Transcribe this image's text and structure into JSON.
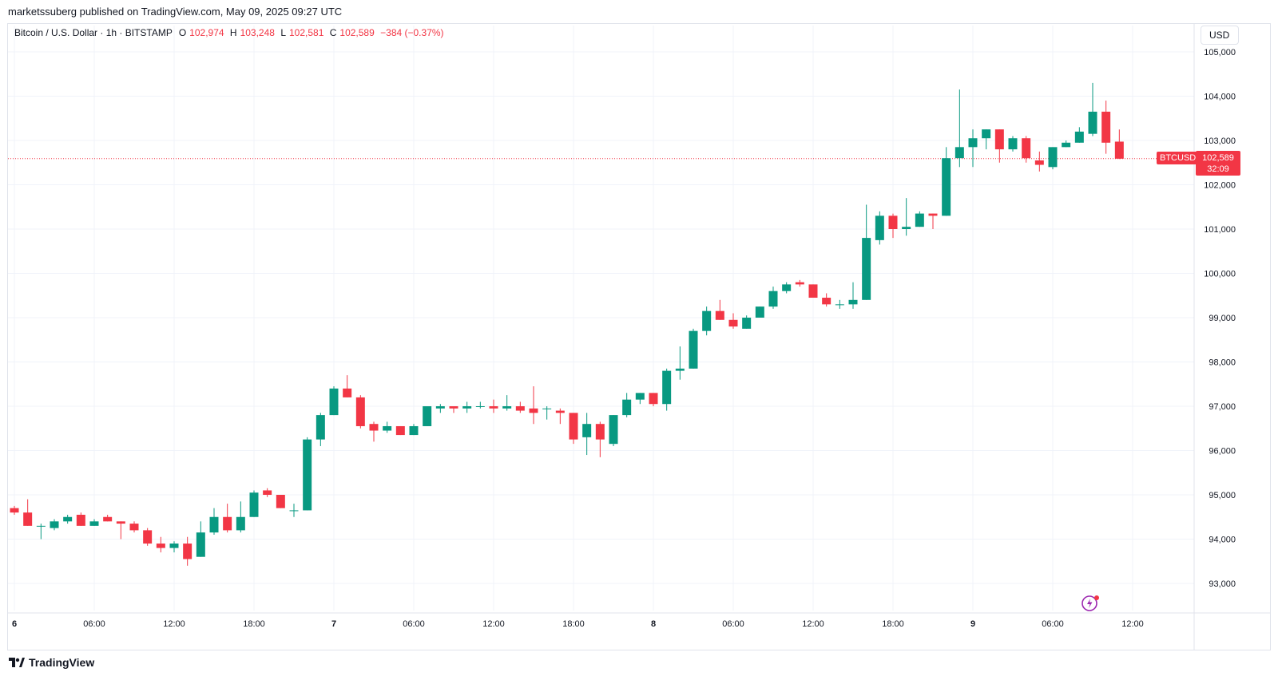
{
  "header": {
    "published": "marketssuberg published on TradingView.com, May 09, 2025 09:27 UTC"
  },
  "legend": {
    "symbol": "Bitcoin / U.S. Dollar · 1h · BITSTAMP",
    "o_label": "O",
    "o_value": "102,974",
    "h_label": "H",
    "h_value": "103,248",
    "l_label": "L",
    "l_value": "102,581",
    "c_label": "C",
    "c_value": "102,589",
    "change": "−384 (−0.37%)"
  },
  "currency_button": "USD",
  "price_tag": {
    "symbol": "BTCUSD",
    "price": "102,589",
    "countdown": "32:09"
  },
  "brand": "TradingView",
  "colors": {
    "up": "#089981",
    "down": "#f23645",
    "grid": "#f0f3fa",
    "text": "#131722"
  },
  "chart_data": {
    "type": "candlestick",
    "title": "Bitcoin / U.S. Dollar · 1h · BITSTAMP",
    "xlabel": "",
    "ylabel": "",
    "ylim": [
      92500,
      105000
    ],
    "y_ticks": [
      93000,
      94000,
      95000,
      96000,
      97000,
      98000,
      99000,
      100000,
      101000,
      102000,
      103000,
      104000,
      105000
    ],
    "y_tick_labels": [
      "93,000",
      "94,000",
      "95,000",
      "96,000",
      "97,000",
      "98,000",
      "99,000",
      "100,000",
      "101,000",
      "102,000",
      "103,000",
      "104,000",
      "105,000"
    ],
    "x_tick_labels": [
      {
        "label": "6",
        "hour": 0,
        "bold": true
      },
      {
        "label": "06:00",
        "hour": 6
      },
      {
        "label": "12:00",
        "hour": 12
      },
      {
        "label": "18:00",
        "hour": 18
      },
      {
        "label": "7",
        "hour": 24,
        "bold": true
      },
      {
        "label": "06:00",
        "hour": 30
      },
      {
        "label": "12:00",
        "hour": 36
      },
      {
        "label": "18:00",
        "hour": 42
      },
      {
        "label": "8",
        "hour": 48,
        "bold": true
      },
      {
        "label": "06:00",
        "hour": 54
      },
      {
        "label": "12:00",
        "hour": 60
      },
      {
        "label": "18:00",
        "hour": 66
      },
      {
        "label": "9",
        "hour": 72,
        "bold": true
      },
      {
        "label": "06:00",
        "hour": 78
      },
      {
        "label": "12:00",
        "hour": 84
      }
    ],
    "last_price": 102589,
    "candles": [
      [
        94700,
        94750,
        94550,
        94600
      ],
      [
        94600,
        94900,
        94300,
        94300
      ],
      [
        94300,
        94350,
        94000,
        94300
      ],
      [
        94250,
        94450,
        94200,
        94400
      ],
      [
        94400,
        94550,
        94350,
        94500
      ],
      [
        94550,
        94600,
        94300,
        94300
      ],
      [
        94300,
        94450,
        94300,
        94400
      ],
      [
        94500,
        94550,
        94400,
        94400
      ],
      [
        94400,
        94400,
        94000,
        94350
      ],
      [
        94350,
        94400,
        94150,
        94200
      ],
      [
        94200,
        94250,
        93850,
        93900
      ],
      [
        93900,
        94050,
        93700,
        93800
      ],
      [
        93800,
        93950,
        93700,
        93900
      ],
      [
        93900,
        94050,
        93400,
        93550
      ],
      [
        93600,
        94400,
        93600,
        94150
      ],
      [
        94150,
        94700,
        94100,
        94500
      ],
      [
        94500,
        94800,
        94150,
        94200
      ],
      [
        94200,
        94850,
        94150,
        94500
      ],
      [
        94500,
        95100,
        94500,
        95050
      ],
      [
        95100,
        95150,
        94950,
        95000
      ],
      [
        95000,
        95000,
        94700,
        94700
      ],
      [
        94650,
        94800,
        94500,
        94650
      ],
      [
        94650,
        96300,
        94650,
        96250
      ],
      [
        96250,
        96850,
        96100,
        96800
      ],
      [
        96800,
        97450,
        96800,
        97400
      ],
      [
        97400,
        97700,
        97200,
        97200
      ],
      [
        97200,
        97250,
        96500,
        96550
      ],
      [
        96600,
        96650,
        96200,
        96450
      ],
      [
        96450,
        96650,
        96400,
        96550
      ],
      [
        96550,
        96550,
        96350,
        96350
      ],
      [
        96350,
        96600,
        96350,
        96550
      ],
      [
        96550,
        97000,
        96550,
        97000
      ],
      [
        96950,
        97050,
        96850,
        97000
      ],
      [
        97000,
        97000,
        96850,
        96950
      ],
      [
        96950,
        97100,
        96850,
        97000
      ],
      [
        97000,
        97100,
        96950,
        97000
      ],
      [
        97000,
        97150,
        96850,
        96950
      ],
      [
        96950,
        97250,
        96900,
        97000
      ],
      [
        97000,
        97100,
        96850,
        96900
      ],
      [
        96950,
        97450,
        96600,
        96850
      ],
      [
        96950,
        97000,
        96700,
        96950
      ],
      [
        96900,
        96950,
        96600,
        96850
      ],
      [
        96850,
        96850,
        96150,
        96250
      ],
      [
        96300,
        96850,
        95900,
        96600
      ],
      [
        96600,
        96650,
        95850,
        96250
      ],
      [
        96150,
        96800,
        96100,
        96800
      ],
      [
        96800,
        97300,
        96750,
        97150
      ],
      [
        97150,
        97300,
        97050,
        97300
      ],
      [
        97300,
        97300,
        97000,
        97050
      ],
      [
        97050,
        97850,
        96900,
        97800
      ],
      [
        97800,
        98350,
        97600,
        97850
      ],
      [
        97850,
        98750,
        97850,
        98700
      ],
      [
        98700,
        99250,
        98600,
        99150
      ],
      [
        99150,
        99400,
        98950,
        98950
      ],
      [
        98950,
        99100,
        98750,
        98800
      ],
      [
        98750,
        99050,
        98750,
        99000
      ],
      [
        99000,
        99250,
        99000,
        99250
      ],
      [
        99250,
        99700,
        99200,
        99600
      ],
      [
        99600,
        99800,
        99550,
        99750
      ],
      [
        99800,
        99850,
        99700,
        99750
      ],
      [
        99750,
        99750,
        99450,
        99450
      ],
      [
        99450,
        99550,
        99250,
        99300
      ],
      [
        99300,
        99400,
        99200,
        99300
      ],
      [
        99300,
        99800,
        99200,
        99400
      ],
      [
        99400,
        101550,
        99400,
        100800
      ],
      [
        100750,
        101400,
        100650,
        101300
      ],
      [
        101300,
        101350,
        100800,
        101000
      ],
      [
        101000,
        101700,
        100850,
        101050
      ],
      [
        101050,
        101400,
        101050,
        101350
      ],
      [
        101350,
        101350,
        101000,
        101300
      ],
      [
        101300,
        102850,
        101300,
        102600
      ],
      [
        102600,
        104150,
        102400,
        102850
      ],
      [
        102850,
        103250,
        102400,
        103050
      ],
      [
        103050,
        103250,
        102800,
        103250
      ],
      [
        103250,
        103250,
        102500,
        102800
      ],
      [
        102800,
        103100,
        102750,
        103050
      ],
      [
        103050,
        103100,
        102500,
        102600
      ],
      [
        102550,
        102750,
        102300,
        102450
      ],
      [
        102400,
        102850,
        102350,
        102850
      ],
      [
        102850,
        103000,
        102850,
        102950
      ],
      [
        102950,
        103300,
        102950,
        103200
      ],
      [
        103150,
        104300,
        103100,
        103650
      ],
      [
        103650,
        103900,
        102700,
        102950
      ],
      [
        102974,
        103248,
        102581,
        102589
      ]
    ]
  }
}
